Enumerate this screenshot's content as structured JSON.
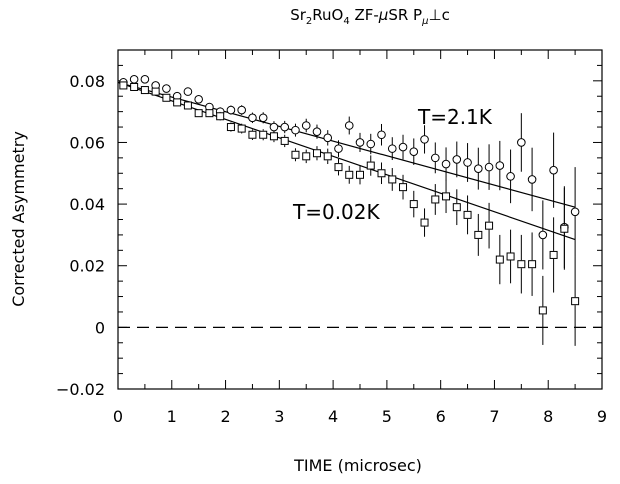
{
  "chart_data": {
    "type": "scatter",
    "title": "Sr2RuO4 ZF-μSR Pμ⊥c",
    "title_parts": {
      "a": "Sr",
      "a_sub": "2",
      "b": "RuO",
      "b_sub": "4",
      "c": " ZF-",
      "mu": "μ",
      "d": "SR P",
      "mu_sub": "μ",
      "perp": "⊥",
      "e": "c"
    },
    "xlabel": "TIME (microsec)",
    "ylabel": "Corrected Asymmetry",
    "xlim": [
      0,
      9
    ],
    "ylim": [
      -0.02,
      0.09
    ],
    "xticks": [
      0,
      1,
      2,
      3,
      4,
      5,
      6,
      7,
      8,
      9
    ],
    "xtick_labels": [
      "0",
      "1",
      "2",
      "3",
      "4",
      "5",
      "6",
      "7",
      "8",
      "9"
    ],
    "yticks": [
      -0.02,
      0,
      0.02,
      0.04,
      0.06,
      0.08
    ],
    "ytick_labels": [
      "−0.02",
      "0",
      "0.02",
      "0.04",
      "0.06",
      "0.08"
    ],
    "grid": false,
    "reference_line": {
      "y": 0,
      "style": "dashed"
    },
    "series": [
      {
        "marker": "circle",
        "annotation": "T=2.1K",
        "x": [
          0.1,
          0.3,
          0.5,
          0.7,
          0.9,
          1.1,
          1.3,
          1.5,
          1.7,
          1.9,
          2.1,
          2.3,
          2.5,
          2.7,
          2.9,
          3.1,
          3.3,
          3.5,
          3.7,
          3.9,
          4.1,
          4.3,
          4.5,
          4.7,
          4.9,
          5.1,
          5.3,
          5.5,
          5.7,
          5.9,
          6.1,
          6.3,
          6.5,
          6.7,
          6.9,
          7.1,
          7.3,
          7.5,
          7.7,
          7.9,
          8.1,
          8.3,
          8.5
        ],
        "y": [
          0.0795,
          0.0805,
          0.0805,
          0.0785,
          0.0775,
          0.075,
          0.0765,
          0.074,
          0.0715,
          0.07,
          0.0705,
          0.0705,
          0.068,
          0.068,
          0.065,
          0.065,
          0.064,
          0.0655,
          0.0635,
          0.0615,
          0.058,
          0.0655,
          0.06,
          0.0595,
          0.0625,
          0.058,
          0.0585,
          0.057,
          0.061,
          0.055,
          0.053,
          0.0545,
          0.0535,
          0.0515,
          0.052,
          0.0525,
          0.049,
          0.06,
          0.048,
          0.03,
          0.051,
          0.0325,
          0.0375
        ],
        "yerr": [
          0.001,
          0.001,
          0.001,
          0.001,
          0.001,
          0.0012,
          0.0012,
          0.0013,
          0.0013,
          0.0014,
          0.0015,
          0.0016,
          0.0017,
          0.0018,
          0.0019,
          0.002,
          0.0021,
          0.0022,
          0.0023,
          0.0025,
          0.0027,
          0.0029,
          0.0031,
          0.0033,
          0.0035,
          0.0037,
          0.004,
          0.0043,
          0.0046,
          0.005,
          0.0054,
          0.0058,
          0.0063,
          0.0068,
          0.0074,
          0.008,
          0.0087,
          0.0095,
          0.0103,
          0.0112,
          0.0122,
          0.0133,
          0.0145
        ]
      },
      {
        "marker": "square",
        "annotation": "T=0.02K",
        "x": [
          0.1,
          0.3,
          0.5,
          0.7,
          0.9,
          1.1,
          1.3,
          1.5,
          1.7,
          1.9,
          2.1,
          2.3,
          2.5,
          2.7,
          2.9,
          3.1,
          3.3,
          3.5,
          3.7,
          3.9,
          4.1,
          4.3,
          4.5,
          4.7,
          4.9,
          5.1,
          5.3,
          5.5,
          5.7,
          5.9,
          6.1,
          6.3,
          6.5,
          6.7,
          6.9,
          7.1,
          7.3,
          7.5,
          7.7,
          7.9,
          8.1,
          8.3,
          8.5
        ],
        "y": [
          0.0785,
          0.078,
          0.077,
          0.0765,
          0.0745,
          0.073,
          0.072,
          0.0695,
          0.0695,
          0.0685,
          0.065,
          0.0645,
          0.0625,
          0.0625,
          0.062,
          0.0605,
          0.056,
          0.0555,
          0.0565,
          0.0555,
          0.052,
          0.0495,
          0.0495,
          0.0525,
          0.05,
          0.048,
          0.0455,
          0.04,
          0.034,
          0.0415,
          0.0425,
          0.039,
          0.0365,
          0.03,
          0.033,
          0.022,
          0.023,
          0.0205,
          0.0205,
          0.0055,
          0.0235,
          0.032,
          0.0085
        ],
        "yerr": [
          0.001,
          0.001,
          0.001,
          0.001,
          0.001,
          0.0012,
          0.0012,
          0.0013,
          0.0013,
          0.0014,
          0.0015,
          0.0016,
          0.0017,
          0.0018,
          0.0019,
          0.002,
          0.0021,
          0.0022,
          0.0023,
          0.0025,
          0.0027,
          0.0029,
          0.0031,
          0.0033,
          0.0035,
          0.0037,
          0.004,
          0.0043,
          0.0046,
          0.005,
          0.0054,
          0.0058,
          0.0063,
          0.0068,
          0.0074,
          0.008,
          0.0087,
          0.0095,
          0.0103,
          0.0112,
          0.0122,
          0.0133,
          0.0145
        ]
      }
    ],
    "fit_lines": [
      {
        "x": [
          0,
          8.5
        ],
        "y": [
          0.0795,
          0.039
        ]
      },
      {
        "x": [
          0,
          8.5
        ],
        "y": [
          0.0795,
          0.0285
        ]
      }
    ]
  }
}
